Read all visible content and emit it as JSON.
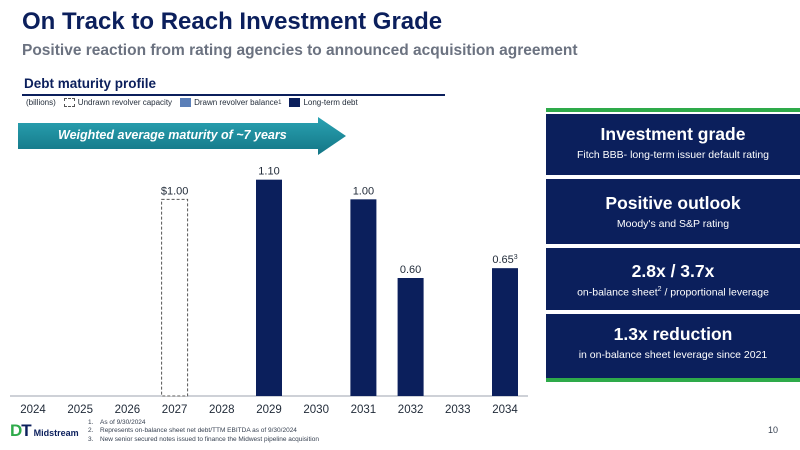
{
  "header": {
    "title": "On Track to Reach Investment Grade",
    "subtitle": "Positive reaction from rating agencies to announced acquisition agreement"
  },
  "section": {
    "title": "Debt maturity profile"
  },
  "legend": {
    "units": "(billions)",
    "undrawn": "Undrawn revolver capacity",
    "drawn": "Drawn revolver balance",
    "drawn_sup": "1",
    "long_term": "Long-term debt"
  },
  "arrow": {
    "text": "Weighted average maturity of ~7 years"
  },
  "chart_data": {
    "type": "bar",
    "categories": [
      "2024",
      "2025",
      "2026",
      "2027",
      "2028",
      "2029",
      "2030",
      "2031",
      "2032",
      "2033",
      "2034"
    ],
    "series": [
      {
        "name": "Undrawn revolver capacity",
        "values": [
          null,
          null,
          null,
          1.0,
          null,
          null,
          null,
          null,
          null,
          null,
          null
        ]
      },
      {
        "name": "Drawn revolver balance",
        "values": [
          null,
          null,
          null,
          null,
          null,
          null,
          null,
          null,
          null,
          null,
          null
        ]
      },
      {
        "name": "Long-term debt",
        "values": [
          null,
          null,
          null,
          null,
          null,
          1.1,
          null,
          1.0,
          0.6,
          null,
          0.65
        ]
      }
    ],
    "data_labels": [
      {
        "category": "2027",
        "text": "$1.00"
      },
      {
        "category": "2029",
        "text": "1.10"
      },
      {
        "category": "2031",
        "text": "1.00"
      },
      {
        "category": "2032",
        "text": "0.60"
      },
      {
        "category": "2034",
        "text": "0.65",
        "sup": "3"
      }
    ],
    "ylim": [
      0,
      1.2
    ],
    "grid": false,
    "legend_position": "top-left",
    "colors": {
      "undrawn": "#ffffff",
      "drawn": "#5b7fb8",
      "long_term": "#0b1f5c"
    }
  },
  "panels": [
    {
      "head": "Investment grade",
      "sub": "Fitch BBB- long-term issuer default rating"
    },
    {
      "head": "Positive outlook",
      "sub": "Moody's and S&P rating"
    },
    {
      "head": "2.8x / 3.7x",
      "sub_a": "on-balance sheet",
      "sub_sup": "2",
      "sub_b": " / proportional leverage"
    },
    {
      "head": "1.3x reduction",
      "sub": "in on-balance sheet leverage since 2021"
    }
  ],
  "footnotes": [
    {
      "num": "1.",
      "text": "As of 9/30/2024"
    },
    {
      "num": "2.",
      "text": "Represents on-balance sheet net debt/TTM EBITDA as of 9/30/2024"
    },
    {
      "num": "3.",
      "text": "New senior secured notes issued to finance the Midwest pipeline acquisition"
    }
  ],
  "logo": {
    "dt_d": "D",
    "dt_t": "T",
    "midstream": "Midstream"
  },
  "page_number": "10",
  "colors": {
    "navy": "#0b1f5c",
    "green": "#2eaa4a",
    "teal": "#1a8a9c"
  }
}
